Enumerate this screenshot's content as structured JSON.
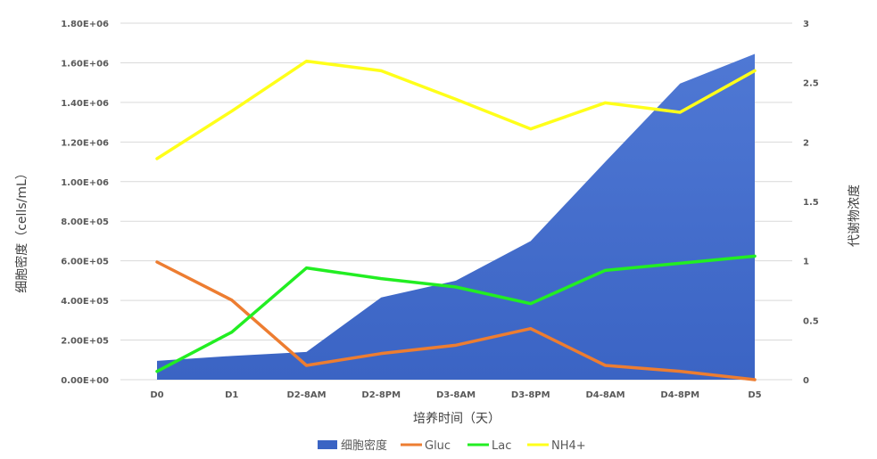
{
  "chart_data": {
    "type": "area",
    "categories": [
      "D0",
      "D1",
      "D2-8AM",
      "D2-8PM",
      "D3-8AM",
      "D3-8PM",
      "D4-8AM",
      "D4-8PM",
      "D5"
    ],
    "xlabel": "培养时间（天）",
    "ylabel_left": "细胞密度（cells/mL）",
    "ylabel_right": "代谢物浓度",
    "ylim_left": [
      0,
      1800000
    ],
    "ylim_right": [
      0,
      3
    ],
    "yticks_left": [
      "0.00E+00",
      "2.00E+05",
      "4.00E+05",
      "6.00E+05",
      "8.00E+05",
      "1.00E+06",
      "1.20E+06",
      "1.40E+06",
      "1.60E+06",
      "1.80E+06"
    ],
    "yticks_right": [
      "0",
      "0.5",
      "1",
      "1.5",
      "2",
      "2.5",
      "3"
    ],
    "grid": true,
    "legend_position": "bottom",
    "series": [
      {
        "name": "细胞密度",
        "type": "area",
        "axis": "left",
        "color": "#3b64c4",
        "values": [
          95000,
          120000,
          140000,
          415000,
          500000,
          700000,
          1100000,
          1495000,
          1645000
        ]
      },
      {
        "name": "Gluc",
        "type": "line",
        "axis": "right",
        "color": "#ed7d31",
        "values": [
          0.99,
          0.67,
          0.12,
          0.22,
          0.29,
          0.43,
          0.12,
          0.07,
          0.0
        ]
      },
      {
        "name": "Lac",
        "type": "line",
        "axis": "right",
        "color": "#22ee22",
        "values": [
          0.07,
          0.4,
          0.94,
          0.85,
          0.78,
          0.64,
          0.92,
          0.98,
          1.04
        ]
      },
      {
        "name": "NH4+",
        "type": "line",
        "axis": "right",
        "color": "#ffff1a",
        "values": [
          1.86,
          2.26,
          2.68,
          2.6,
          2.36,
          2.11,
          2.33,
          2.25,
          2.6
        ]
      }
    ]
  }
}
